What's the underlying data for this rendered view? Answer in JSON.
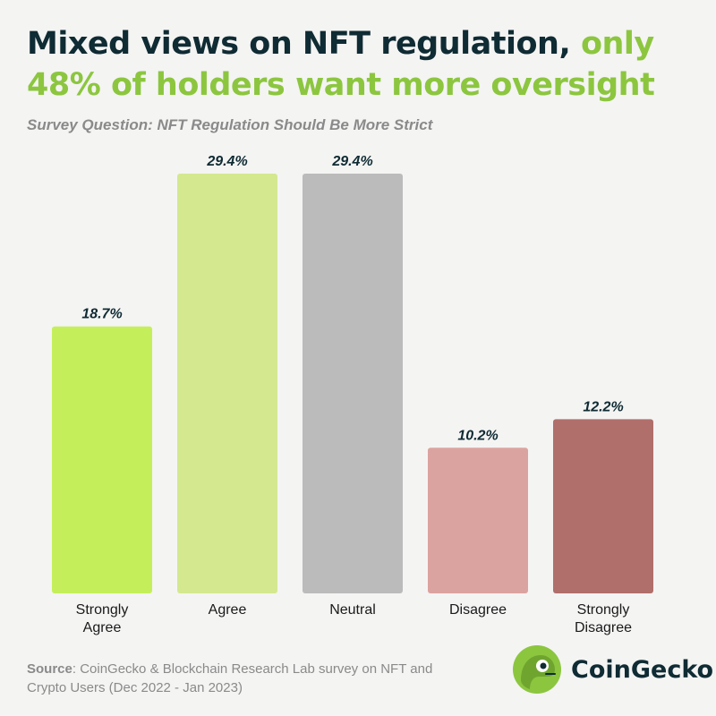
{
  "title": {
    "part1": "Mixed views on NFT regulation,",
    "part2": "only",
    "part3": "48% of holders want more oversight"
  },
  "subtitle": "Survey Question: NFT Regulation Should Be More Strict",
  "chart_data": {
    "type": "bar",
    "categories": [
      "Strongly Agree",
      "Agree",
      "Neutral",
      "Disagree",
      "Strongly Disagree"
    ],
    "category_lines": [
      [
        "Strongly",
        "Agree"
      ],
      [
        "Agree"
      ],
      [
        "Neutral"
      ],
      [
        "Disagree"
      ],
      [
        "Strongly",
        "Disagree"
      ]
    ],
    "values": [
      18.7,
      29.4,
      29.4,
      10.2,
      12.2
    ],
    "value_labels": [
      "18.7%",
      "29.4%",
      "29.4%",
      "10.2%",
      "12.2%"
    ],
    "colors": [
      "#c5ef5a",
      "#d4e88f",
      "#bbbbbb",
      "#dba39f",
      "#b06f6b"
    ],
    "unit": "%",
    "ylim": [
      0,
      29.4
    ],
    "grid": false,
    "legend": "none"
  },
  "source": {
    "label": "Source",
    "text": ": CoinGecko & Blockchain Research Lab survey on NFT and Crypto Users (Dec 2022 - Jan 2023)"
  },
  "logo": {
    "name": "CoinGecko",
    "icon": "gecko-logo-icon",
    "accent": "#8cc63f"
  }
}
